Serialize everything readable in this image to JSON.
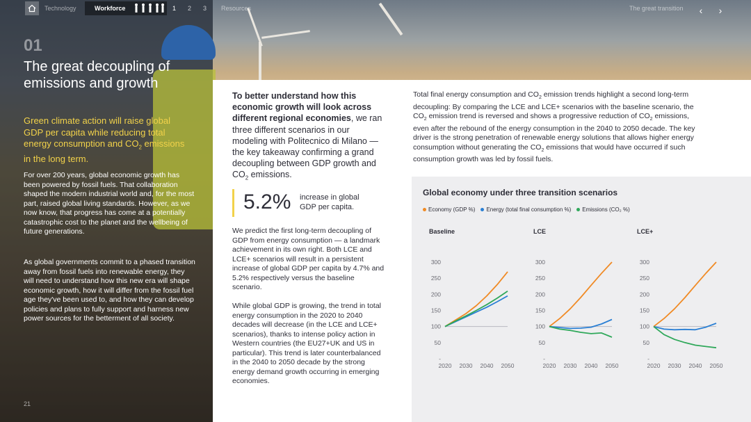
{
  "nav": {
    "item1": "Technology",
    "item2": "Workforce",
    "pages": [
      "1",
      "2",
      "3"
    ],
    "item3": "Resources",
    "section": "The great transition"
  },
  "left": {
    "number": "01",
    "title": "The great decoupling of emissions and growth",
    "highlight_a": "Green climate action will raise global GDP per capita while reducing total energy consumption and CO",
    "highlight_sub": "2",
    "highlight_b": " emissions in the long term.",
    "para1": "For over 200 years, global economic growth has been powered by fossil fuels. That collaboration shaped the modern industrial world and, for the most part, raised global living standards. However, as we now know, that progress has come at a potentially catastrophic cost to the planet and the wellbeing of future generations.",
    "para2": "As global governments commit to a phased transition away from fossil fuels into renewable energy, they will need to understand how this new era will shape economic growth, how it will differ from the fossil fuel age they've been used to, and how they can develop policies and plans to fully support and harness new power sources for the betterment of all society.",
    "page": "21"
  },
  "middle": {
    "lead_bold": "To better understand how this economic growth will look across different regional economies",
    "lead_rest": ", we ran three different scenarios in our modeling with Politecnico di Milano — the key takeaway confirming a grand decoupling between GDP growth and CO",
    "lead_sub": "2",
    "lead_end": " emissions.",
    "stat_value": "5.2%",
    "stat_label": "increase in global GDP per capita.",
    "para1": "We predict the first long-term decoupling of GDP from energy consumption — a landmark achievement in its own right. Both LCE and LCE+ scenarios will result in a persistent increase of global GDP per capita by 4.7% and 5.2% respectively versus the baseline scenario.",
    "para2": "While global GDP is growing, the trend in total energy consumption in the 2020 to 2040 decades will decrease (in the LCE and LCE+ scenarios), thanks to intense policy action in Western countries (the EU27+UK and US in particular). This trend is later counterbalanced in the 2040 to 2050 decade by the strong energy demand growth occurring in emerging economies."
  },
  "right": {
    "text_a": "Total final energy consumption and CO",
    "sub1": "2",
    "text_b": " emission trends highlight a second long-term decoupling: By comparing the LCE and LCE+ scenarios with the baseline scenario, the CO",
    "sub2": "2",
    "text_c": " emission trend is reversed and shows a progressive reduction of CO",
    "sub3": "2",
    "text_d": " emissions, even after the rebound of the energy consumption in the 2040 to 2050 decade. The key driver is the strong penetration of renewable energy solutions that allows higher energy consumption without generating the CO",
    "sub4": "2",
    "text_e": " emissions that would have occurred if such consumption growth was led by fossil fuels."
  },
  "chart_data": {
    "type": "line",
    "title": "Global economy under three transition scenarios",
    "legend": [
      {
        "label": "Economy (GDP %)",
        "color": "#f08a24"
      },
      {
        "label": "Energy (total final consumption %)",
        "color": "#2a7fd4"
      },
      {
        "label": "Emissions (CO₂ %)",
        "color": "#2fa85a"
      }
    ],
    "x": [
      2020,
      2025,
      2030,
      2035,
      2040,
      2045,
      2050
    ],
    "x_ticks": [
      "2020",
      "2030",
      "2040",
      "2050"
    ],
    "y_ticks": [
      "300",
      "250",
      "200",
      "150",
      "100",
      "50",
      "-"
    ],
    "ylim": [
      0,
      300
    ],
    "panels": [
      {
        "name": "Baseline",
        "series": [
          {
            "name": "Economy (GDP %)",
            "values": [
              100,
              120,
              140,
              165,
              195,
              230,
              270
            ]
          },
          {
            "name": "Energy (total final consumption %)",
            "values": [
              100,
              115,
              130,
              145,
              160,
              177,
              195
            ]
          },
          {
            "name": "Emissions (CO₂ %)",
            "values": [
              100,
              117,
              133,
              150,
              168,
              188,
              210
            ]
          }
        ]
      },
      {
        "name": "LCE",
        "series": [
          {
            "name": "Economy (GDP %)",
            "values": [
              100,
              125,
              155,
              190,
              228,
              265,
              300
            ]
          },
          {
            "name": "Energy (total final consumption %)",
            "values": [
              100,
              97,
              94,
              95,
              98,
              108,
              122
            ]
          },
          {
            "name": "Emissions (CO₂ %)",
            "values": [
              100,
              92,
              88,
              82,
              78,
              80,
              67
            ]
          }
        ]
      },
      {
        "name": "LCE+",
        "series": [
          {
            "name": "Economy (GDP %)",
            "values": [
              100,
              125,
              155,
              190,
              228,
              265,
              300
            ]
          },
          {
            "name": "Energy (total final consumption %)",
            "values": [
              100,
              92,
              90,
              91,
              90,
              98,
              110
            ]
          },
          {
            "name": "Emissions (CO₂ %)",
            "values": [
              100,
              75,
              60,
              50,
              42,
              38,
              34
            ]
          }
        ]
      }
    ]
  }
}
